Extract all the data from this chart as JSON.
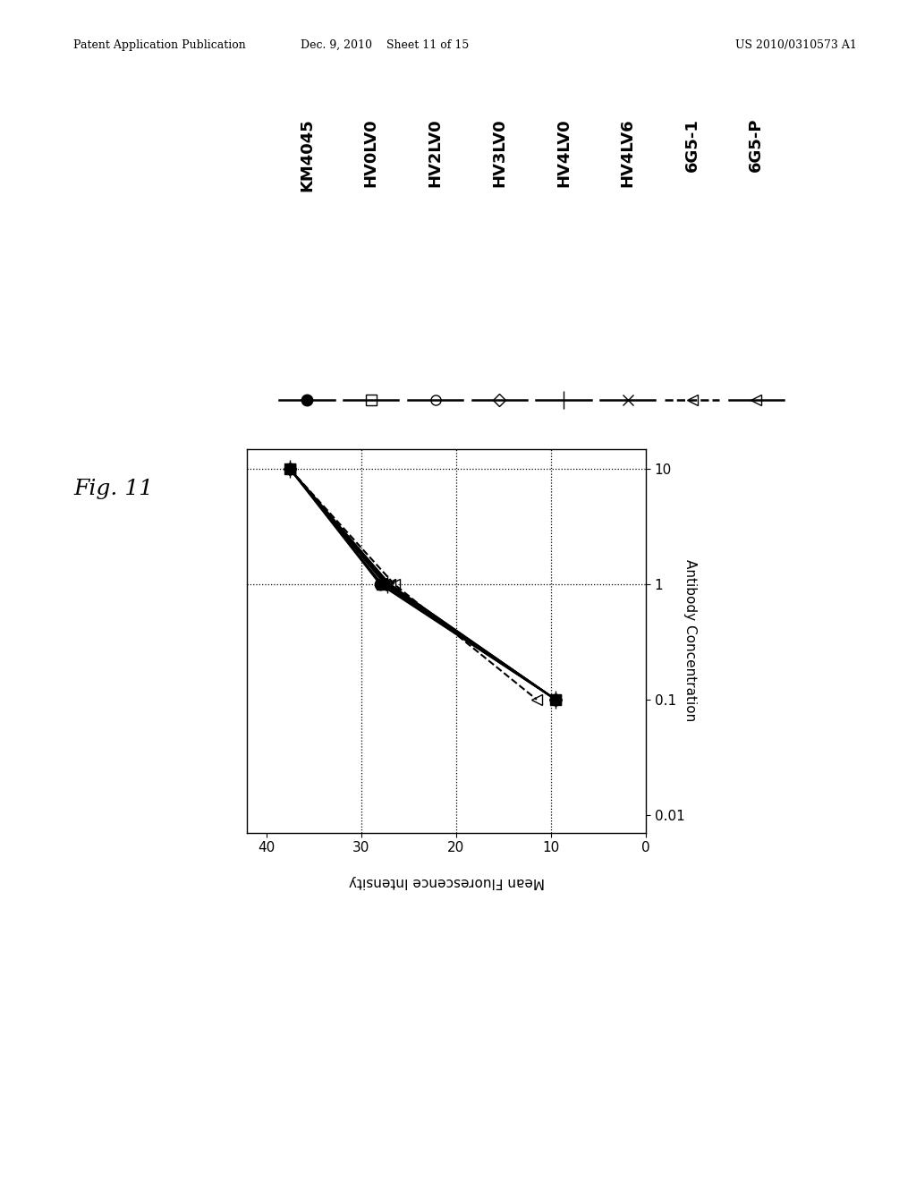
{
  "series": [
    {
      "label": "KM4045",
      "mfi": [
        37.5,
        28.0,
        9.5
      ],
      "marker": "o",
      "fillstyle": "full",
      "linestyle": "-",
      "linewidth": 1.5,
      "markersize": 9
    },
    {
      "label": "HV0LV0",
      "mfi": [
        37.5,
        27.8,
        9.5
      ],
      "marker": "s",
      "fillstyle": "none",
      "linestyle": "-",
      "linewidth": 1.5,
      "markersize": 8
    },
    {
      "label": "HV2LV0",
      "mfi": [
        37.5,
        27.5,
        9.5
      ],
      "marker": "o",
      "fillstyle": "none",
      "linestyle": "-",
      "linewidth": 1.5,
      "markersize": 8
    },
    {
      "label": "HV3LV0",
      "mfi": [
        37.5,
        27.3,
        9.5
      ],
      "marker": "D",
      "fillstyle": "none",
      "linestyle": "-",
      "linewidth": 1.5,
      "markersize": 7
    },
    {
      "label": "HV4LV0",
      "mfi": [
        37.5,
        27.2,
        9.5
      ],
      "marker": "|",
      "fillstyle": "none",
      "linestyle": "-",
      "linewidth": 1.5,
      "markersize": 14
    },
    {
      "label": "HV4LV6",
      "mfi": [
        37.5,
        27.0,
        9.5
      ],
      "marker": "x",
      "fillstyle": "none",
      "linestyle": "-",
      "linewidth": 1.5,
      "markersize": 9
    },
    {
      "label": "6G5-1",
      "mfi": [
        37.5,
        26.5,
        11.5
      ],
      "marker": "<",
      "fillstyle": "none",
      "linestyle": "--",
      "linewidth": 1.5,
      "markersize": 8
    },
    {
      "label": "6G5-P",
      "mfi": [
        37.5,
        27.0,
        9.5
      ],
      "marker": "<",
      "fillstyle": "none",
      "linestyle": "-",
      "linewidth": 1.5,
      "markersize": 8
    }
  ],
  "conc_values": [
    10,
    1,
    0.1
  ],
  "mfi_lim": [
    0,
    42
  ],
  "mfi_ticks": [
    0,
    10,
    20,
    30,
    40
  ],
  "conc_lim": [
    0.007,
    15
  ],
  "conc_ticks": [
    0.01,
    0.1,
    1,
    10
  ],
  "conc_tick_labels": [
    "0.01",
    "0.1",
    "1",
    "10"
  ],
  "vgrid_conc": [
    1,
    10
  ],
  "hgrid_mfi": [
    10,
    20,
    30
  ],
  "color": "#000000",
  "background_color": "#ffffff",
  "header_left": "Patent Application Publication",
  "header_center": "Dec. 9, 2010    Sheet 11 of 15",
  "header_right": "US 2010/0310573 A1",
  "fig_label": "Fig. 11",
  "xlabel": "Mean Fluorescence Intensity",
  "ylabel": "Antibody Concentration"
}
